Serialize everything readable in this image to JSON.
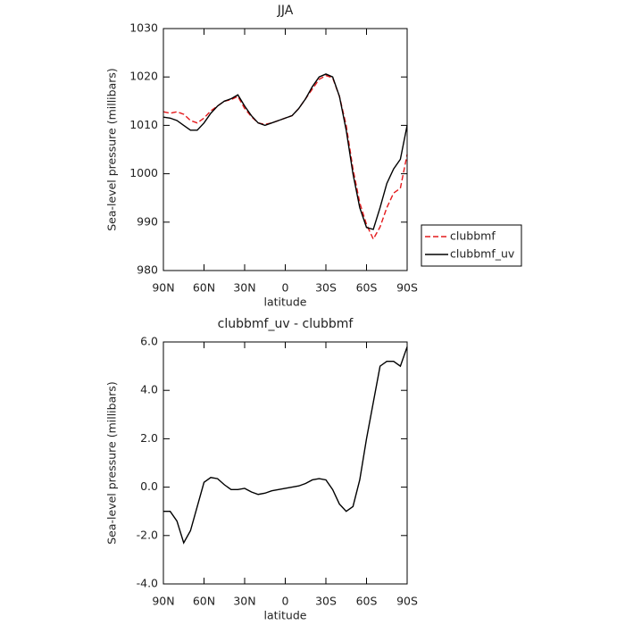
{
  "chart_data": [
    {
      "type": "line",
      "title": "JJA",
      "xlabel": "latitude",
      "ylabel": "Sea-level pressure (millibars)",
      "x": [
        90,
        85,
        80,
        75,
        70,
        65,
        60,
        55,
        50,
        45,
        40,
        35,
        30,
        25,
        20,
        15,
        10,
        5,
        0,
        -5,
        -10,
        -15,
        -20,
        -25,
        -30,
        -35,
        -40,
        -45,
        -50,
        -55,
        -60,
        -65,
        -70,
        -75,
        -80,
        -85,
        -90
      ],
      "xlim": [
        90,
        -90
      ],
      "xticks": [
        {
          "value": 90,
          "label": "90N"
        },
        {
          "value": 60,
          "label": "60N"
        },
        {
          "value": 30,
          "label": "30N"
        },
        0,
        {
          "value": -30,
          "label": "30S"
        },
        {
          "value": -60,
          "label": "60S"
        },
        {
          "value": -90,
          "label": "90S"
        }
      ],
      "ylim": [
        980,
        1030
      ],
      "yticks": [
        980,
        990,
        1000,
        1010,
        1020,
        1030
      ],
      "legend": "right",
      "series": [
        {
          "name": "clubbmf",
          "color": "#e41a1c",
          "line_style": "dashed",
          "values": [
            1012.8,
            1012.5,
            1012.8,
            1012.3,
            1011,
            1010.5,
            1011.5,
            1013,
            1014,
            1015,
            1015.3,
            1016,
            1013.5,
            1011.8,
            1010.5,
            1010.2,
            1010.5,
            1011,
            1011.5,
            1012,
            1013.5,
            1015.5,
            1017.5,
            1019.5,
            1020.3,
            1019.8,
            1016,
            1010,
            1001,
            994,
            989.5,
            986.5,
            989,
            993,
            996,
            997,
            1004
          ]
        },
        {
          "name": "clubbmf_uv",
          "color": "#000000",
          "line_style": "solid",
          "values": [
            1011.7,
            1011.5,
            1011,
            1010,
            1009,
            1009,
            1010.5,
            1012.5,
            1014,
            1015,
            1015.5,
            1016.3,
            1014,
            1012,
            1010.5,
            1010,
            1010.5,
            1011,
            1011.5,
            1012,
            1013.5,
            1015.5,
            1018,
            1020,
            1020.6,
            1020,
            1016,
            1009,
            1000,
            993,
            988.9,
            988.5,
            993,
            998,
            1001,
            1003,
            1010
          ]
        }
      ]
    },
    {
      "type": "line",
      "title": "clubbmf_uv - clubbmf",
      "xlabel": "latitude",
      "ylabel": "Sea-level pressure (millibars)",
      "x": [
        90,
        85,
        80,
        75,
        70,
        65,
        60,
        55,
        50,
        45,
        40,
        35,
        30,
        25,
        20,
        15,
        10,
        5,
        0,
        -5,
        -10,
        -15,
        -20,
        -25,
        -30,
        -35,
        -40,
        -45,
        -50,
        -55,
        -60,
        -65,
        -70,
        -75,
        -80,
        -85,
        -90
      ],
      "xlim": [
        90,
        -90
      ],
      "xticks": [
        {
          "value": 90,
          "label": "90N"
        },
        {
          "value": 60,
          "label": "60N"
        },
        {
          "value": 30,
          "label": "30N"
        },
        0,
        {
          "value": -30,
          "label": "30S"
        },
        {
          "value": -60,
          "label": "60S"
        },
        {
          "value": -90,
          "label": "90S"
        }
      ],
      "ylim": [
        -4,
        6
      ],
      "yticks": [
        {
          "value": -4,
          "label": "-4.0"
        },
        {
          "value": -2,
          "label": "-2.0"
        },
        {
          "value": 0,
          "label": "0.0"
        },
        {
          "value": 2,
          "label": "2.0"
        },
        {
          "value": 4,
          "label": "4.0"
        },
        {
          "value": 6,
          "label": "6.0"
        }
      ],
      "series": [
        {
          "color": "#000000",
          "line_style": "solid",
          "values": [
            -1.0,
            -1.0,
            -1.4,
            -2.3,
            -1.8,
            -0.8,
            0.2,
            0.4,
            0.35,
            0.1,
            -0.1,
            -0.1,
            -0.05,
            -0.2,
            -0.3,
            -0.25,
            -0.15,
            -0.1,
            -0.05,
            0,
            0.05,
            0.15,
            0.3,
            0.35,
            0.3,
            -0.1,
            -0.7,
            -1.0,
            -0.8,
            0.3,
            2.0,
            3.5,
            5.0,
            5.2,
            5.2,
            5.0,
            5.8
          ]
        }
      ]
    }
  ]
}
